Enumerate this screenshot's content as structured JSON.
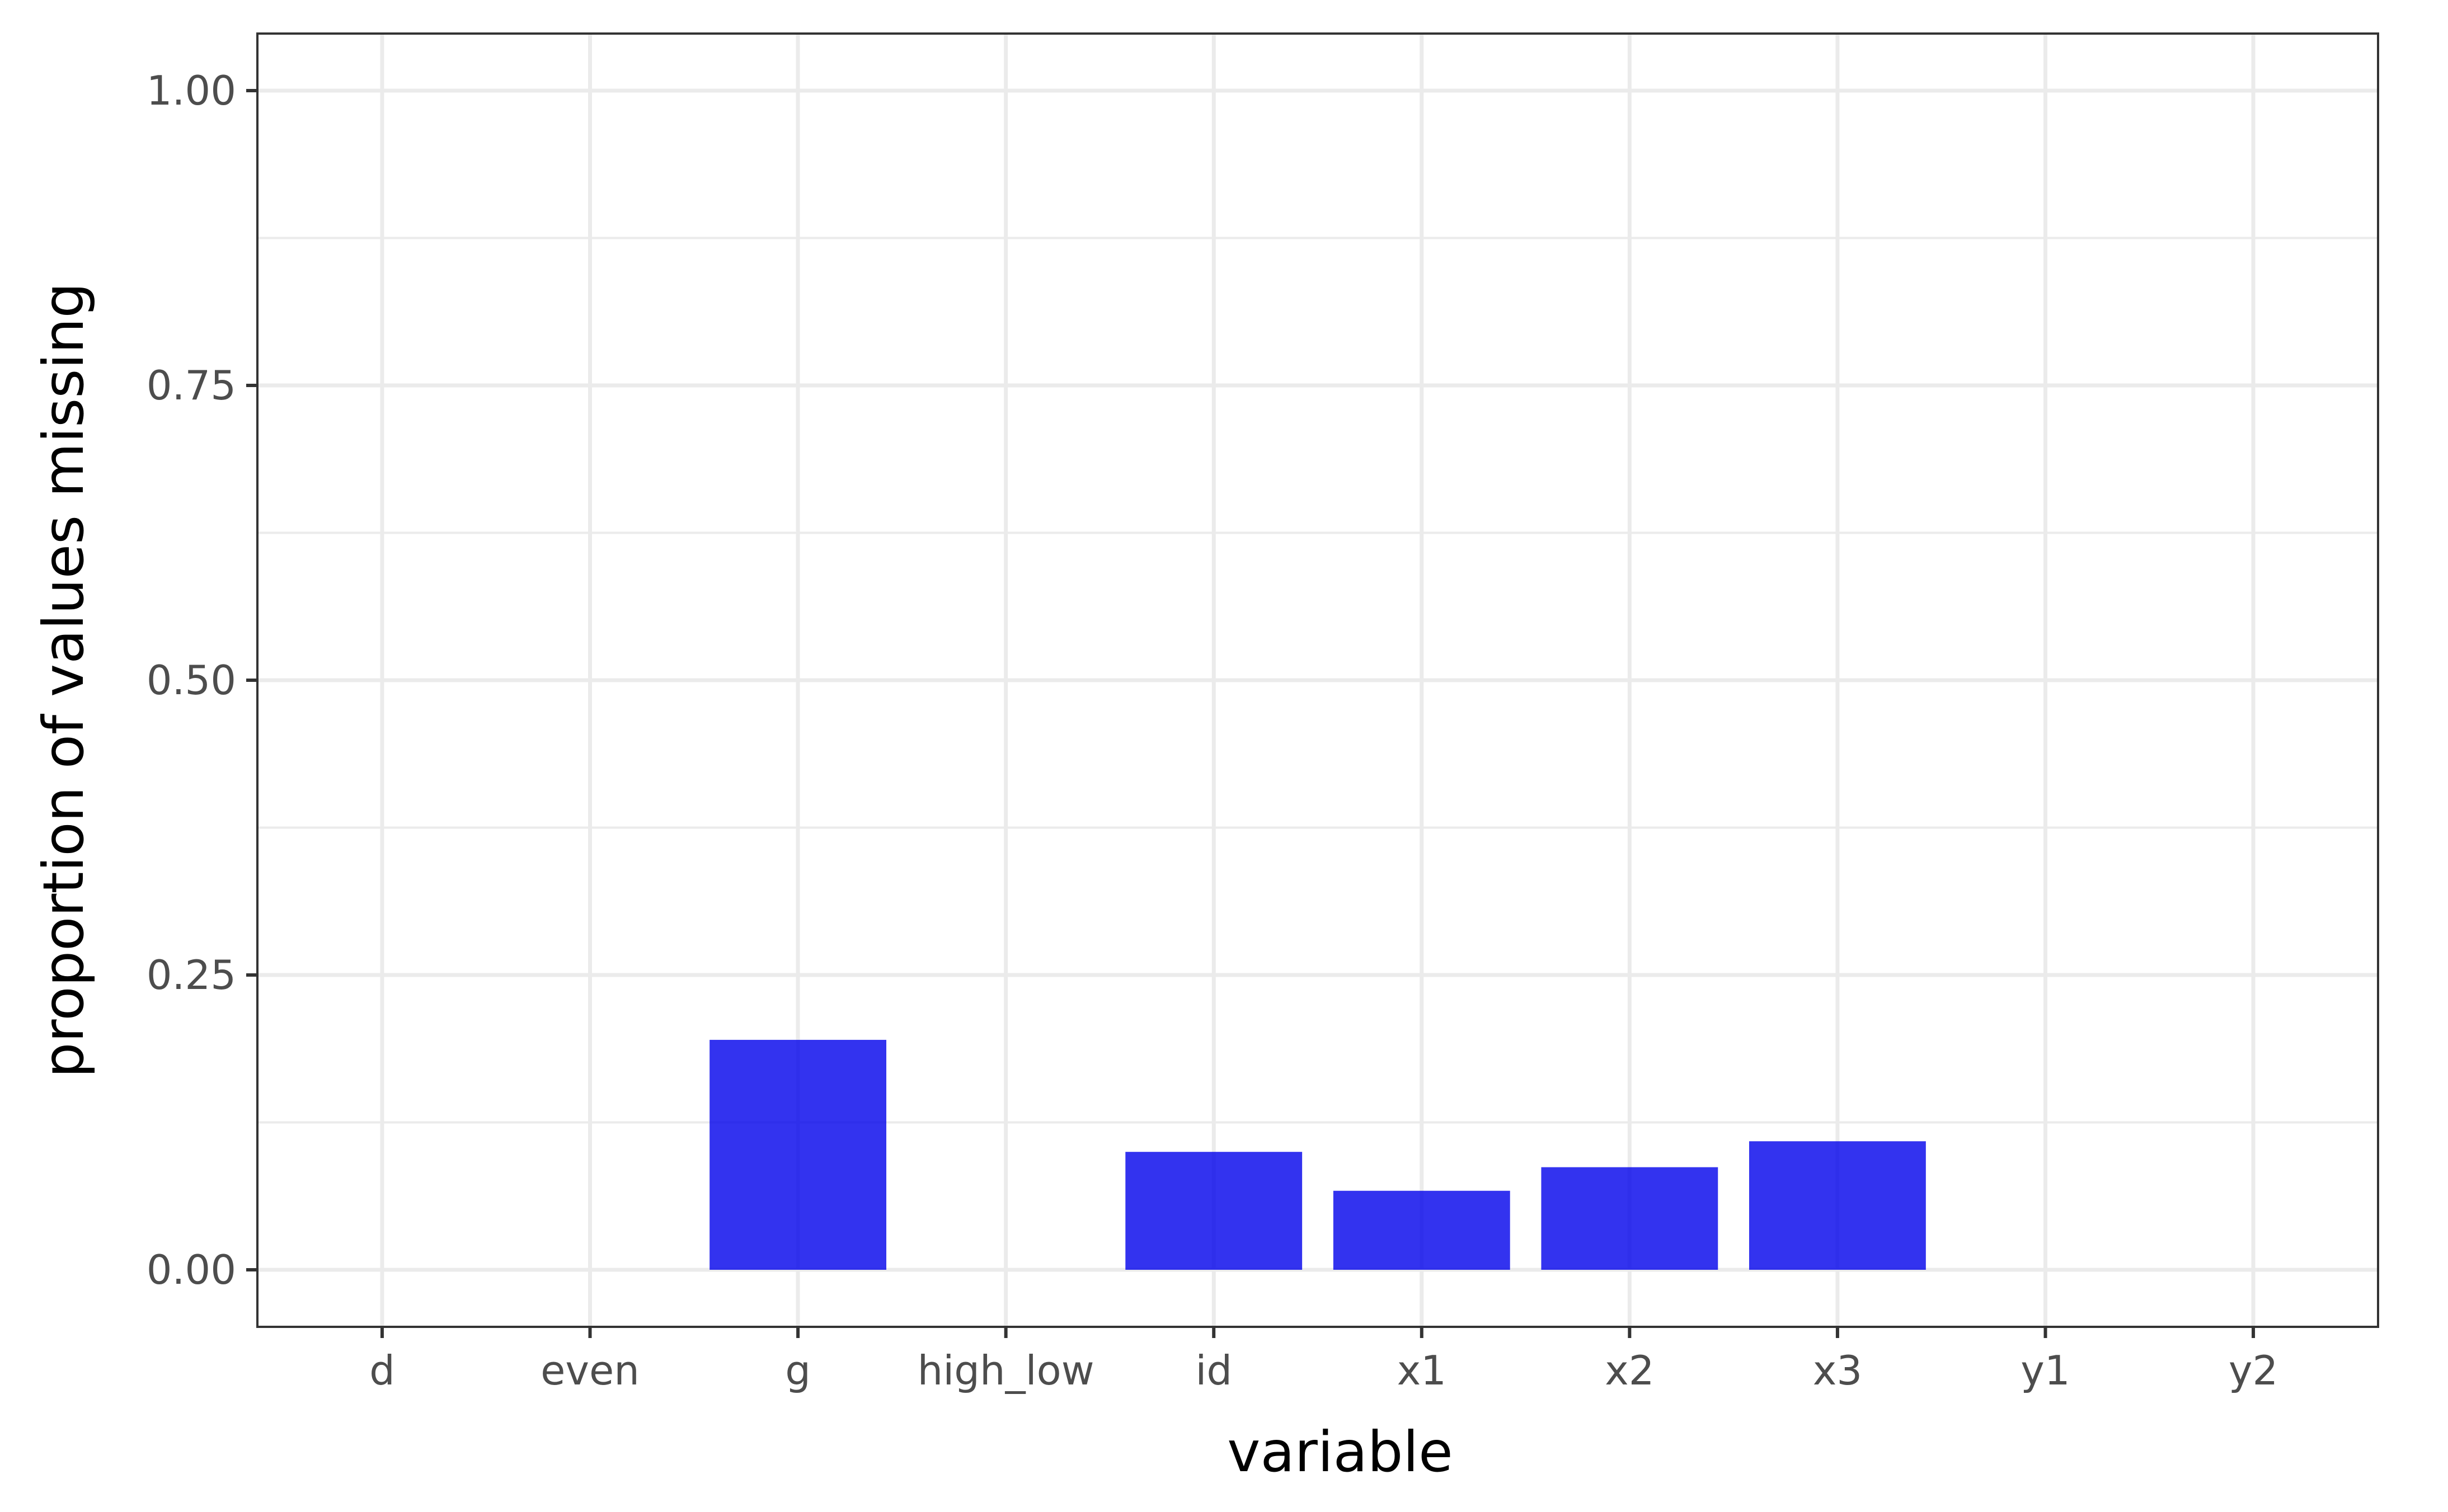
{
  "chart_data": {
    "type": "bar",
    "title": "",
    "xlabel": "variable",
    "ylabel": "proportion of values missing",
    "categories": [
      "d",
      "even",
      "g",
      "high_low",
      "id",
      "x1",
      "x2",
      "x3",
      "y1",
      "y2"
    ],
    "values": [
      0,
      0,
      0.195,
      0,
      0.1,
      0.067,
      0.087,
      0.109,
      0,
      0
    ],
    "ylim": [
      -0.05,
      1.05
    ],
    "yticks": [
      0,
      0.25,
      0.5,
      0.75,
      1
    ],
    "ytick_labels": [
      "0.00",
      "0.25",
      "0.50",
      "0.75",
      "1.00"
    ],
    "grid": true,
    "bar_color": "#0000eb",
    "bar_opacity": 0.8,
    "panel_border_color": "#333333",
    "gridline_color": "#ebebeb"
  }
}
